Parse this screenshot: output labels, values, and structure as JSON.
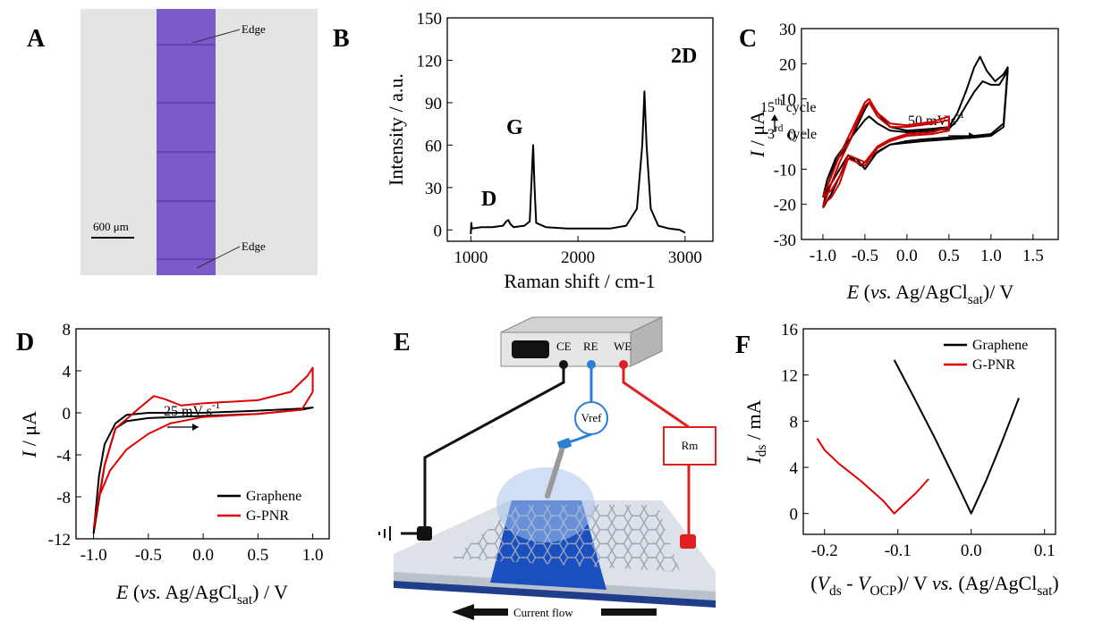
{
  "panel_a": {
    "label": "A",
    "edge_top": "Edge",
    "edge_bottom": "Edge",
    "scale_bar": "600 μm"
  },
  "panel_e": {
    "label": "E",
    "ce": "CE",
    "re": "RE",
    "we": "WE",
    "vref": "Vref",
    "rm": "Rm",
    "current": "Current flow"
  },
  "chart_data": [
    {
      "type": "line",
      "label": "B",
      "ylabel": [
        "Intensity / a.u."
      ],
      "xlabel": [
        "Raman shift / cm-1"
      ],
      "annotations": [
        [
          "D"
        ],
        [
          "G"
        ],
        [
          "2D"
        ]
      ],
      "color": "#000000",
      "x": [
        1000,
        1005,
        1010,
        1100,
        1200,
        1300,
        1330,
        1350,
        1370,
        1400,
        1500,
        1550,
        1570,
        1582,
        1595,
        1610,
        1700,
        1900,
        2100,
        2300,
        2450,
        2550,
        2600,
        2620,
        2640,
        2680,
        2750,
        2850,
        2950,
        3000
      ],
      "values": [
        -3,
        5,
        1,
        2,
        2,
        3,
        6,
        7,
        4,
        2,
        3,
        6,
        40,
        60,
        30,
        5,
        2,
        1,
        1,
        1,
        3,
        15,
        60,
        98,
        60,
        15,
        3,
        1,
        0,
        -2
      ],
      "xlim": [
        780,
        3260
      ],
      "ylim": [
        -8,
        150
      ],
      "xticks": [
        1000,
        2000,
        3000
      ],
      "yticks": [
        0,
        30,
        60,
        90,
        120,
        150
      ]
    },
    {
      "type": "line",
      "label": "C",
      "ylabel": [
        "I",
        " / μA"
      ],
      "xlabel": [
        "E",
        " (",
        "vs.",
        " Ag/AgCl",
        "sat",
        ")/ V"
      ],
      "annotations": [
        [
          "15",
          "th",
          " cycle"
        ],
        [
          "3",
          "rd",
          " cycle"
        ],
        [
          "50 mV s",
          "-1"
        ]
      ],
      "series": [
        {
          "color": "#000000",
          "x": [
            -1.0,
            -0.95,
            -0.85,
            -0.7,
            -0.6,
            -0.5,
            -0.45,
            -0.35,
            -0.2,
            0,
            0.3,
            0.5,
            0.6,
            0.7,
            0.8,
            0.87,
            0.95,
            1.05,
            1.15,
            1.2,
            1.15,
            1.0,
            0.8,
            0.5,
            0.2,
            0,
            -0.2,
            -0.35,
            -0.5,
            -0.6,
            -0.7,
            -0.8,
            -0.9,
            -1.0
          ],
          "values": [
            -21,
            -15,
            -8,
            -3,
            2,
            7,
            9,
            6,
            2,
            1,
            1.5,
            2,
            6,
            12,
            19,
            22,
            18,
            15,
            17,
            19,
            3,
            0,
            -0.5,
            -1,
            -1.5,
            -2,
            -3,
            -5,
            -10,
            -7,
            -7,
            -12,
            -17,
            -21
          ]
        },
        {
          "color": "#000000",
          "x": [
            -1.0,
            -0.95,
            -0.85,
            -0.7,
            -0.6,
            -0.5,
            -0.45,
            -0.35,
            -0.2,
            0,
            0.3,
            0.5,
            0.6,
            0.7,
            0.8,
            0.9,
            1.0,
            1.1,
            1.2,
            1.15,
            1.0,
            0.8,
            0.5,
            0.2,
            0,
            -0.2,
            -0.4,
            -0.55,
            -0.7,
            -0.8,
            -0.9,
            -1.0
          ],
          "values": [
            -18,
            -13,
            -7,
            -2,
            1,
            4,
            5,
            3,
            1,
            0.5,
            1,
            1.5,
            4,
            8,
            12,
            15,
            14,
            14,
            18,
            2,
            -0.5,
            -1,
            -1.5,
            -2,
            -2.5,
            -3,
            -6,
            -9,
            -6,
            -10,
            -14,
            -18
          ]
        },
        {
          "color": "#cc0000",
          "x": [
            -1.0,
            -0.9,
            -0.8,
            -0.7,
            -0.6,
            -0.5,
            -0.45,
            -0.35,
            -0.2,
            0,
            0.3,
            0.5,
            0.5,
            0.3,
            0,
            -0.2,
            -0.35,
            -0.5,
            -0.6,
            -0.7,
            -0.8,
            -0.9,
            -1.0
          ],
          "values": [
            -21,
            -14,
            -8,
            -3,
            3,
            8,
            9,
            5,
            2,
            2,
            3,
            4,
            1,
            0,
            -0.5,
            -2,
            -4,
            -9,
            -8,
            -7,
            -14,
            -18,
            -20
          ]
        },
        {
          "color": "#cc0000",
          "x": [
            -1.0,
            -0.9,
            -0.8,
            -0.7,
            -0.6,
            -0.5,
            -0.45,
            -0.35,
            -0.2,
            0,
            0.3,
            0.5,
            0.5,
            0.3,
            0,
            -0.2,
            -0.35,
            -0.5,
            -0.6,
            -0.7,
            -0.8,
            -0.9,
            -1.0
          ],
          "values": [
            -18,
            -12,
            -6,
            -1,
            4,
            9,
            10,
            6,
            3,
            2.5,
            3.5,
            5,
            2,
            0.5,
            0,
            -1.5,
            -3.5,
            -8,
            -7,
            -6,
            -12,
            -16,
            -18
          ]
        }
      ],
      "xlim": [
        -1.255,
        1.8
      ],
      "ylim": [
        -30,
        30
      ],
      "xticks": [
        {
          "value": -1,
          "label": "-1.0"
        },
        -0.5,
        {
          "value": 0,
          "label": "0.0"
        },
        0.5,
        {
          "value": 1,
          "label": "1.0"
        },
        1.5
      ],
      "yticks": [
        -30,
        -20,
        -10,
        0,
        10,
        20,
        30
      ]
    },
    {
      "type": "line",
      "label": "D",
      "ylabel": [
        "I",
        " / μA"
      ],
      "xlabel": [
        "E",
        " (",
        "vs.",
        " Ag/AgCl",
        "sat",
        ") / V"
      ],
      "annotations": [
        [
          "25 mV s",
          "-1"
        ]
      ],
      "legend": "lower right",
      "series": [
        {
          "name": "Graphene",
          "color": "#000000",
          "x": [
            -1.0,
            -0.95,
            -0.9,
            -0.8,
            -0.7,
            -0.5,
            0,
            0.5,
            0.9,
            1.0,
            0.9,
            0.5,
            0,
            -0.5,
            -0.7,
            -0.8,
            -0.9,
            -1.0
          ],
          "values": [
            -11.5,
            -6,
            -3,
            -1,
            -0.2,
            0,
            0,
            0.2,
            0.4,
            0.5,
            0.3,
            -0.1,
            -0.3,
            -0.5,
            -0.8,
            -1.5,
            -5,
            -11.5
          ]
        },
        {
          "name": "G-PNR",
          "color": "#e00000",
          "x": [
            -1,
            -0.9,
            -0.8,
            -0.6,
            -0.45,
            -0.35,
            -0.2,
            0,
            0.5,
            0.8,
            0.95,
            1.0,
            1.0,
            0.9,
            0.5,
            0,
            -0.3,
            -0.5,
            -0.7,
            -0.85,
            -0.95,
            -1
          ],
          "values": [
            -11,
            -5,
            -1.5,
            0.3,
            1.6,
            1.3,
            0.7,
            0.9,
            1.2,
            2,
            3.5,
            4.3,
            2,
            0.3,
            -0.1,
            -0.4,
            -1,
            -2,
            -3.5,
            -5.5,
            -8,
            -11
          ]
        }
      ],
      "xlim": [
        -1.16,
        1.15
      ],
      "ylim": [
        -12,
        8
      ],
      "xticks": [
        {
          "value": -1,
          "label": "-1.0"
        },
        -0.5,
        {
          "value": 0,
          "label": "0.0"
        },
        0.5,
        {
          "value": 1,
          "label": "1.0"
        }
      ],
      "yticks": [
        -12,
        -8,
        -4,
        0,
        4,
        8
      ]
    },
    {
      "type": "line",
      "label": "F",
      "ylabel": [
        "I",
        "ds",
        " / mA"
      ],
      "xlabel": [
        "(",
        "V",
        "ds",
        " - ",
        "V",
        "OCP",
        ")/ V ",
        "vs.",
        " (Ag/AgCl",
        "sat",
        ")"
      ],
      "legend": "upper right",
      "series": [
        {
          "name": "Graphene",
          "color": "#000000",
          "x": [
            -0.105,
            -0.08,
            -0.05,
            -0.02,
            0,
            0.02,
            0.04,
            0.065
          ],
          "values": [
            13.3,
            10.3,
            6.6,
            2.7,
            0,
            2.8,
            5.9,
            10
          ]
        },
        {
          "name": "G-PNR",
          "color": "#e00000",
          "x": [
            -0.21,
            -0.2,
            -0.18,
            -0.15,
            -0.12,
            -0.105,
            -0.09,
            -0.075,
            -0.058
          ],
          "values": [
            6.5,
            5.5,
            4.3,
            2.8,
            1.1,
            0,
            0.9,
            1.8,
            3
          ]
        }
      ],
      "xlim": [
        -0.229,
        0.115
      ],
      "ylim": [
        -1.8,
        16
      ],
      "xticks": [
        -0.2,
        -0.1,
        {
          "value": 0,
          "label": "0.0"
        },
        0.1
      ],
      "yticks": [
        0,
        4,
        8,
        12,
        16
      ]
    }
  ]
}
